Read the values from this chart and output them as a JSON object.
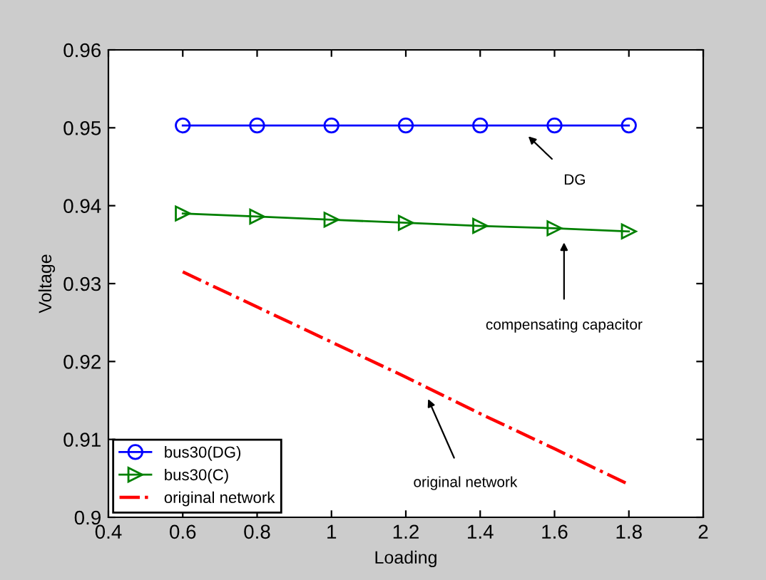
{
  "chart_data": {
    "type": "line",
    "xlabel": "Loading",
    "ylabel": "Voltage",
    "x": [
      0.6,
      0.8,
      1.0,
      1.2,
      1.4,
      1.6,
      1.8
    ],
    "series": [
      {
        "name": "bus30(DG)",
        "color": "#0000ff",
        "marker": "circle",
        "line_style": "solid",
        "values": [
          0.9503,
          0.9503,
          0.9503,
          0.9503,
          0.9503,
          0.9503,
          0.9503
        ]
      },
      {
        "name": "bus30(C)",
        "color": "#008000",
        "marker": "triangle",
        "line_style": "solid",
        "values": [
          0.939,
          0.9386,
          0.9382,
          0.9378,
          0.9374,
          0.9371,
          0.9367
        ]
      },
      {
        "name": "original network",
        "color": "#ff0000",
        "marker": "none",
        "line_style": "dashdot",
        "values": [
          0.9315,
          0.927,
          0.9225,
          0.918,
          0.9133,
          0.9088,
          0.9042
        ]
      }
    ],
    "xlim": [
      0.4,
      2
    ],
    "xticks": [
      0.4,
      0.6,
      0.8,
      1,
      1.2,
      1.4,
      1.6,
      1.8,
      2
    ],
    "ylim": [
      0.9,
      0.96
    ],
    "yticks": [
      0.9,
      0.91,
      0.92,
      0.93,
      0.94,
      0.95,
      0.96
    ],
    "grid": false,
    "legend": "bottom left",
    "annotations": [
      "DG",
      "compensating capacitor",
      "original network"
    ]
  }
}
